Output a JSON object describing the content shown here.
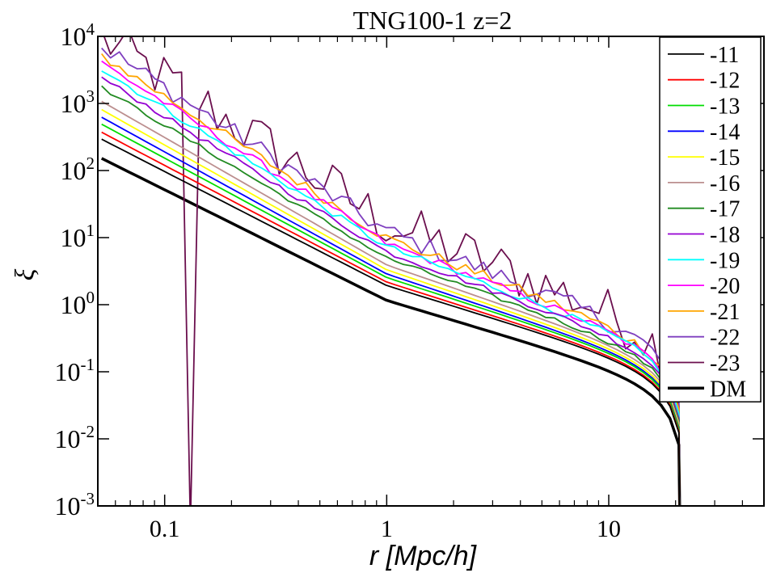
{
  "chart_data": {
    "type": "line",
    "title": "TNG100-1 z=2",
    "xlabel": "r [Mpc/h]",
    "ylabel": "ξ",
    "xscale": "log",
    "yscale": "log",
    "xlim": [
      0.05,
      50
    ],
    "ylim": [
      0.001,
      10000
    ],
    "x_ticks": [
      {
        "value": 0.1,
        "label": "0.1"
      },
      {
        "value": 1,
        "label": "1"
      },
      {
        "value": 10,
        "label": "10"
      }
    ],
    "y_ticks": [
      {
        "value": 0.001,
        "base": "10",
        "exp": "-3"
      },
      {
        "value": 0.01,
        "base": "10",
        "exp": "-2"
      },
      {
        "value": 0.1,
        "base": "10",
        "exp": "-1"
      },
      {
        "value": 1,
        "base": "10",
        "exp": "0"
      },
      {
        "value": 10,
        "base": "10",
        "exp": "1"
      },
      {
        "value": 100,
        "base": "10",
        "exp": "2"
      },
      {
        "value": 1000,
        "base": "10",
        "exp": "3"
      },
      {
        "value": 10000,
        "base": "10",
        "exp": "4"
      }
    ],
    "legend_position": "top-right",
    "grid": false,
    "series": [
      {
        "name": "-11",
        "color": "#000000",
        "width": 1.8,
        "amp": 230,
        "gamma": 1.7,
        "noise": 0
      },
      {
        "name": "-12",
        "color": "#ff0000",
        "width": 1.8,
        "amp": 290,
        "gamma": 1.74,
        "noise": 0
      },
      {
        "name": "-13",
        "color": "#00dd00",
        "width": 1.8,
        "amp": 380,
        "gamma": 1.78,
        "noise": 0
      },
      {
        "name": "-14",
        "color": "#0000ff",
        "width": 1.8,
        "amp": 480,
        "gamma": 1.82,
        "noise": 0
      },
      {
        "name": "-15",
        "color": "#ffff00",
        "width": 1.8,
        "amp": 620,
        "gamma": 1.86,
        "noise": 0
      },
      {
        "name": "-16",
        "color": "#bc8f8f",
        "width": 1.8,
        "amp": 820,
        "gamma": 1.9,
        "noise": 0
      },
      {
        "name": "-17",
        "color": "#228b22",
        "width": 1.8,
        "amp": 1300,
        "gamma": 1.98,
        "noise": 0.03
      },
      {
        "name": "-18",
        "color": "#9400d3",
        "width": 1.8,
        "amp": 1800,
        "gamma": 2.02,
        "noise": 0.04
      },
      {
        "name": "-19",
        "color": "#00ffff",
        "width": 1.8,
        "amp": 2400,
        "gamma": 2.06,
        "noise": 0.05
      },
      {
        "name": "-20",
        "color": "#ff00ff",
        "width": 1.8,
        "amp": 3000,
        "gamma": 2.1,
        "noise": 0.06
      },
      {
        "name": "-21",
        "color": "#ffa500",
        "width": 1.8,
        "amp": 3800,
        "gamma": 2.12,
        "noise": 0.08
      },
      {
        "name": "-22",
        "color": "#7f3fbf",
        "width": 1.8,
        "amp": 5200,
        "gamma": 2.15,
        "noise": 0.15
      },
      {
        "name": "-23",
        "color": "#6b0f4e",
        "width": 1.8,
        "amp": 7000,
        "gamma": 2.15,
        "noise": 0.4
      },
      {
        "name": "DM",
        "color": "#000000",
        "width": 3.5,
        "amp": 120,
        "gamma": 1.65,
        "noise": 0
      }
    ]
  }
}
